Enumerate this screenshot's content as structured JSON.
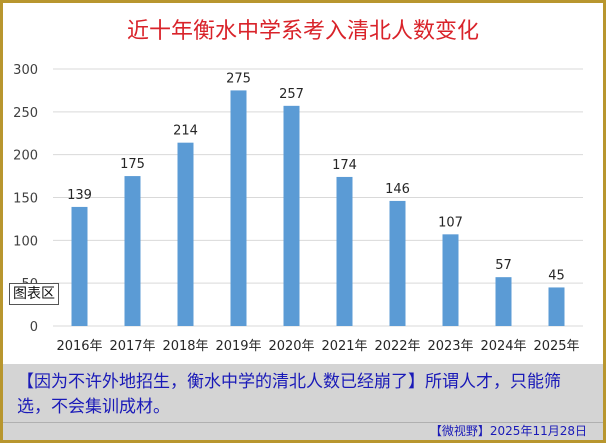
{
  "chart_data": {
    "type": "bar",
    "title": "近十年衡水中学系考入清北人数变化",
    "categories": [
      "2016年",
      "2017年",
      "2018年",
      "2019年",
      "2020年",
      "2021年",
      "2022年",
      "2023年",
      "2024年",
      "2025年"
    ],
    "values": [
      139,
      175,
      214,
      275,
      257,
      174,
      146,
      107,
      57,
      45
    ],
    "ylim": [
      0,
      300
    ],
    "yticks": [
      0,
      50,
      100,
      150,
      200,
      250,
      300
    ],
    "grid": true,
    "legend": "none",
    "colors": {
      "bar": "#5b9bd5",
      "title": "#d9232a",
      "grid": "#d9d9d9"
    }
  },
  "tooltip": "图表区",
  "caption": {
    "highlight": "【因为不许外地招生，衡水中学的清北人数已经崩了】",
    "text": "所谓人才，只能筛选，不会集训成材。"
  },
  "footer": "【微视野】2025年11月28日"
}
